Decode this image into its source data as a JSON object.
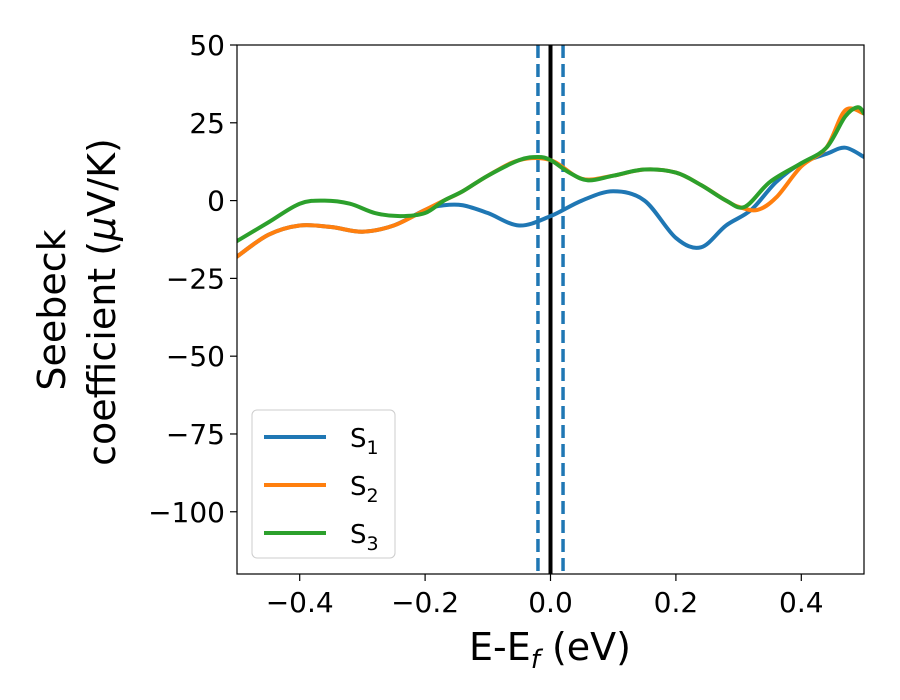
{
  "chart_data": {
    "type": "line",
    "xlabel": {
      "main": "E-E",
      "sub": "f",
      "unit": " (eV)"
    },
    "ylabel": {
      "line1": "Seebeck",
      "line2_prefix": "coefficient  (",
      "mu": "μ",
      "line2_suffix": "V/K)"
    },
    "xlim": [
      -0.5,
      0.5
    ],
    "ylim": [
      -120,
      50
    ],
    "xticks": [
      -0.4,
      -0.2,
      0.0,
      0.2,
      0.4
    ],
    "xtick_labels": [
      "−0.4",
      "−0.2",
      "0.0",
      "0.2",
      "0.4"
    ],
    "yticks": [
      50,
      25,
      0,
      -25,
      -50,
      -75,
      -100
    ],
    "ytick_labels": [
      "50",
      "25",
      "0",
      "−25",
      "−50",
      "−75",
      "−100"
    ],
    "grid": false,
    "legend_position": "lower-left",
    "vlines": [
      {
        "x": 0.0,
        "style": "solid",
        "color": "#000000"
      },
      {
        "x": -0.02,
        "style": "dashed",
        "color": "#1f77b4"
      },
      {
        "x": 0.02,
        "style": "dashed",
        "color": "#1f77b4"
      }
    ],
    "series": [
      {
        "name": "S",
        "sub": "1",
        "color": "#1f77b4",
        "x": [
          -0.5,
          -0.45,
          -0.4,
          -0.35,
          -0.3,
          -0.25,
          -0.2,
          -0.17,
          -0.14,
          -0.1,
          -0.05,
          0.0,
          0.05,
          0.1,
          0.15,
          0.2,
          0.24,
          0.28,
          0.32,
          0.36,
          0.4,
          0.44,
          0.47,
          0.5
        ],
        "y": [
          -18,
          -11,
          -8,
          -8.5,
          -10,
          -8,
          -3,
          -1.5,
          -1.5,
          -4,
          -8,
          -5,
          0,
          3,
          0,
          -12,
          -15,
          -8,
          -3,
          6,
          12,
          15,
          17,
          14
        ]
      },
      {
        "name": "S",
        "sub": "2",
        "color": "#ff7f0e",
        "x": [
          -0.5,
          -0.45,
          -0.4,
          -0.35,
          -0.3,
          -0.25,
          -0.2,
          -0.17,
          -0.14,
          -0.1,
          -0.05,
          0.0,
          0.05,
          0.1,
          0.15,
          0.2,
          0.24,
          0.28,
          0.3,
          0.33,
          0.36,
          0.4,
          0.44,
          0.47,
          0.5
        ],
        "y": [
          -18,
          -11,
          -8,
          -8.5,
          -10,
          -8,
          -3,
          0,
          3,
          8,
          13,
          13,
          7,
          8,
          10,
          9,
          5,
          0,
          -2,
          -3,
          1,
          11,
          17,
          29,
          28
        ]
      },
      {
        "name": "S",
        "sub": "3",
        "color": "#2ca02c",
        "x": [
          -0.5,
          -0.45,
          -0.4,
          -0.36,
          -0.32,
          -0.28,
          -0.24,
          -0.2,
          -0.17,
          -0.14,
          -0.1,
          -0.05,
          -0.02,
          0.0,
          0.03,
          0.06,
          0.1,
          0.15,
          0.2,
          0.24,
          0.28,
          0.31,
          0.35,
          0.4,
          0.44,
          0.47,
          0.49,
          0.5
        ],
        "y": [
          -13,
          -7,
          -1,
          0,
          -1,
          -4,
          -5,
          -4,
          0,
          3,
          8,
          13,
          14,
          13,
          9,
          6.5,
          8,
          10,
          9,
          5,
          0,
          -2,
          6,
          12,
          17,
          27,
          30,
          28
        ]
      }
    ]
  }
}
